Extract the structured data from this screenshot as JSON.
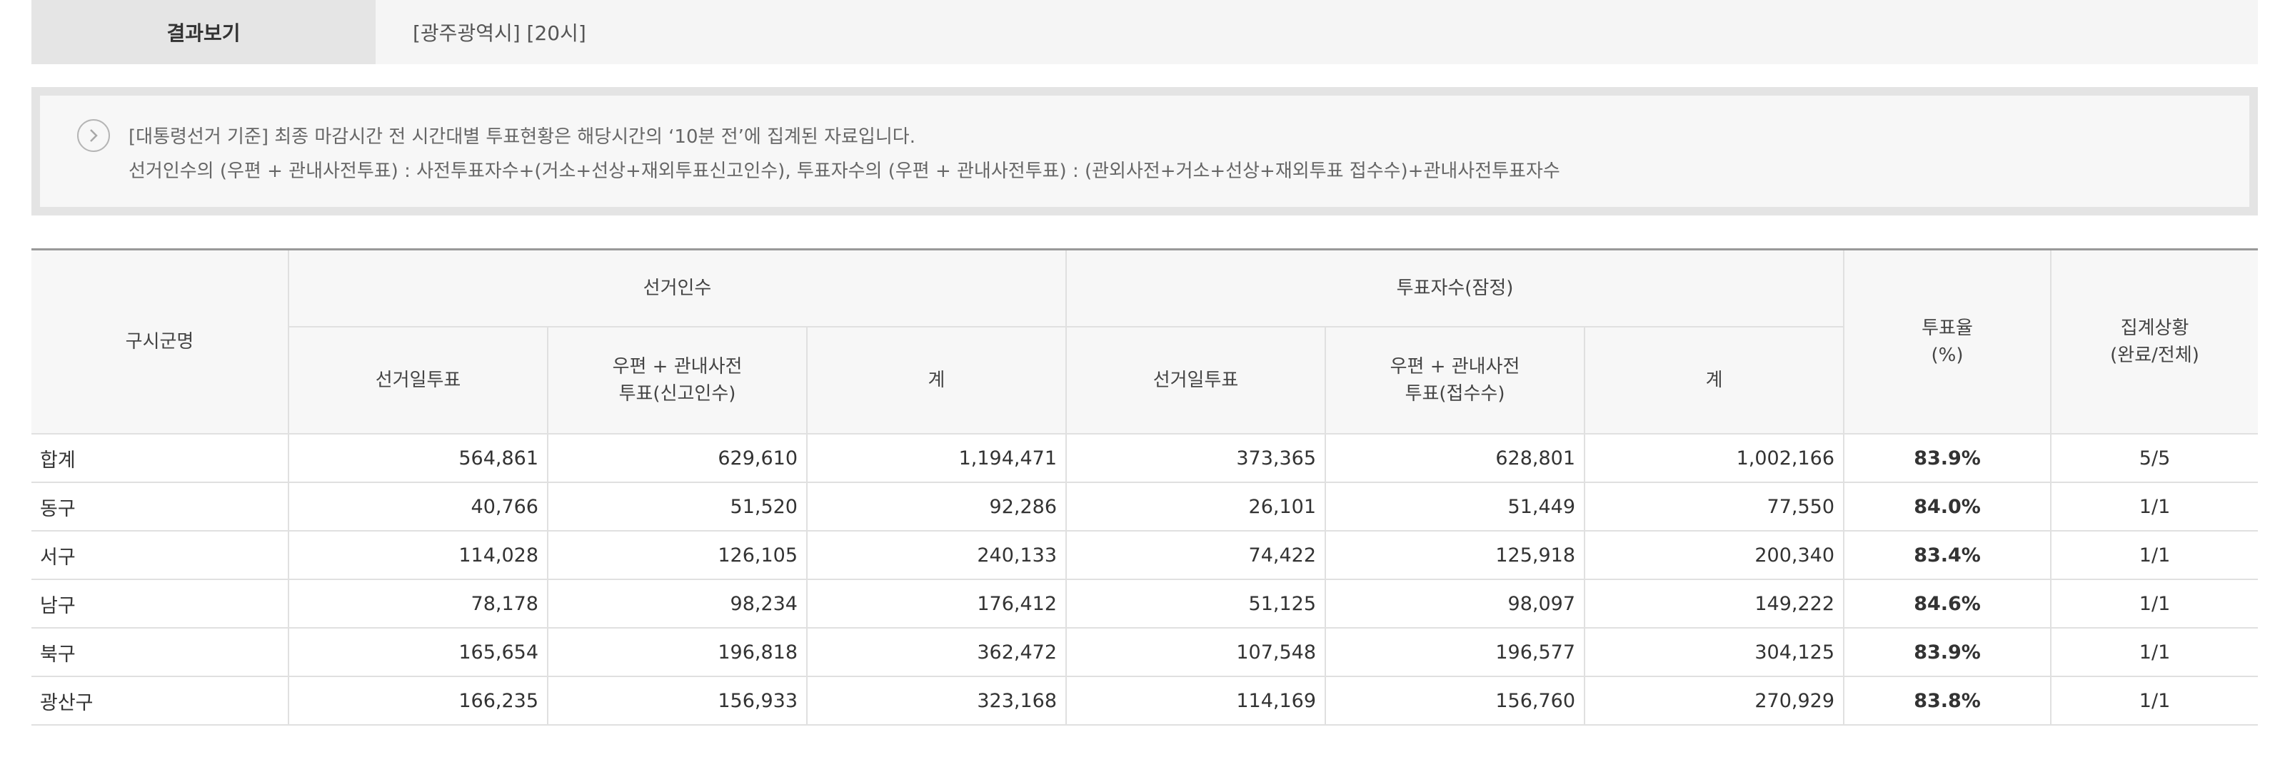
{
  "result": {
    "label": "결과보기",
    "value": "[광주광역시] [20시]"
  },
  "notice": {
    "line1": "[대통령선거 기준] 최종 마감시간 전 시간대별 투표현황은 해당시간의 ‘10분 전’에 집계된 자료입니다.",
    "line2": "선거인수의 (우편 + 관내사전투표) : 사전투표자수+(거소+선상+재외투표신고인수), 투표자수의 (우편 + 관내사전투표) : (관외사전+거소+선상+재외투표 접수수)+관내사전투표자수"
  },
  "table": {
    "headers": {
      "region": "구시군명",
      "electors": "선거인수",
      "voters": "투표자수(잠정)",
      "rate_line1": "투표율",
      "rate_line2": "(%)",
      "status_line1": "집계상황",
      "status_line2": "(완료/전체)",
      "electors_day": "선거일투표",
      "electors_mail_line1": "우편 + 관내사전",
      "electors_mail_line2": "투표(신고인수)",
      "electors_total": "계",
      "voters_day": "선거일투표",
      "voters_mail_line1": "우편 + 관내사전",
      "voters_mail_line2": "투표(접수수)",
      "voters_total": "계"
    },
    "rows": [
      {
        "name": "합계",
        "e_day": "564,861",
        "e_mail": "629,610",
        "e_total": "1,194,471",
        "v_day": "373,365",
        "v_mail": "628,801",
        "v_total": "1,002,166",
        "rate": "83.9%",
        "status": "5/5"
      },
      {
        "name": "동구",
        "e_day": "40,766",
        "e_mail": "51,520",
        "e_total": "92,286",
        "v_day": "26,101",
        "v_mail": "51,449",
        "v_total": "77,550",
        "rate": "84.0%",
        "status": "1/1"
      },
      {
        "name": "서구",
        "e_day": "114,028",
        "e_mail": "126,105",
        "e_total": "240,133",
        "v_day": "74,422",
        "v_mail": "125,918",
        "v_total": "200,340",
        "rate": "83.4%",
        "status": "1/1"
      },
      {
        "name": "남구",
        "e_day": "78,178",
        "e_mail": "98,234",
        "e_total": "176,412",
        "v_day": "51,125",
        "v_mail": "98,097",
        "v_total": "149,222",
        "rate": "84.6%",
        "status": "1/1"
      },
      {
        "name": "북구",
        "e_day": "165,654",
        "e_mail": "196,818",
        "e_total": "362,472",
        "v_day": "107,548",
        "v_mail": "196,577",
        "v_total": "304,125",
        "rate": "83.9%",
        "status": "1/1"
      },
      {
        "name": "광산구",
        "e_day": "166,235",
        "e_mail": "156,933",
        "e_total": "323,168",
        "v_day": "114,169",
        "v_mail": "156,760",
        "v_total": "270,929",
        "rate": "83.8%",
        "status": "1/1"
      }
    ]
  }
}
